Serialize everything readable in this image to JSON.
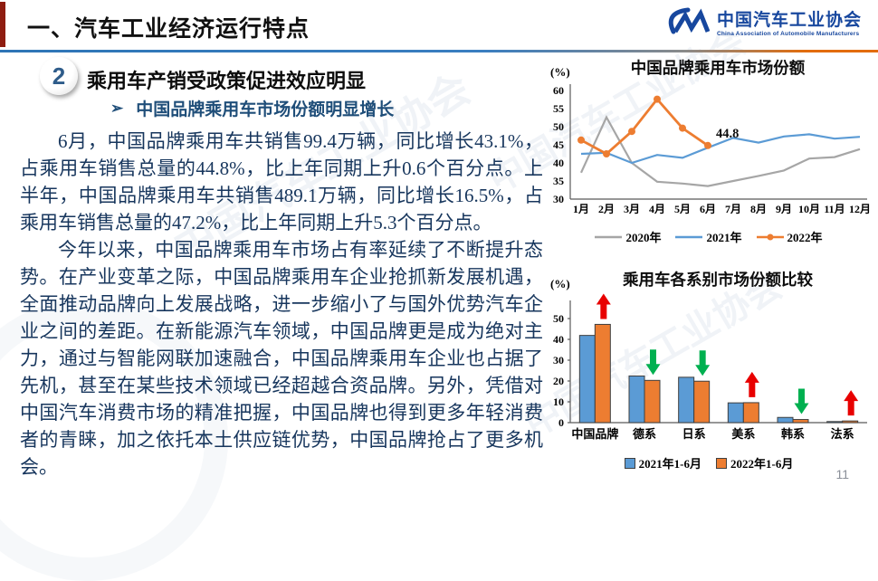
{
  "header": {
    "title": "一、汽车工业经济运行特点",
    "logo": {
      "name_cn": "中国汽车工业协会",
      "name_en": "China Association of Automobile Manufacturers"
    }
  },
  "section": {
    "number": "2",
    "title": "乘用车产销受政策促进效应明显",
    "bullet_marker": "➢",
    "bullet": "中国品牌乘用车市场份额明显增长"
  },
  "paragraphs": [
    "6月，中国品牌乘用车共销售99.4万辆，同比增长43.1%，占乘用车销售总量的44.8%，比上年同期上升0.6个百分点。上半年，中国品牌乘用车共销售489.1万辆，同比增长16.5%，占乘用车销售总量的47.2%，比上年同期上升5.3个百分点。",
    "今年以来，中国品牌乘用车市场占有率延续了不断提升态势。在产业变革之际，中国品牌乘用车企业抢抓新发展机遇，全面推动品牌向上发展战略，进一步缩小了与国外优势汽车企业之间的差距。在新能源汽车领域，中国品牌更是成为绝对主力，通过与智能网联加速融合，中国品牌乘用车企业也占据了先机，甚至在某些技术领域已经超越合资品牌。另外，凭借对中国汽车消费市场的精准把握，中国品牌也得到更多年轻消费者的青睐，加之依托本土供应链优势，中国品牌抢占了更多机会。"
  ],
  "watermark": "中国汽车工业协会",
  "page_number": "11",
  "colors": {
    "line_gray": "#a6a6a6",
    "line_blue": "#5b9bd5",
    "line_orange": "#ed7d31",
    "up_red": "#e80000",
    "down_green": "#00b050",
    "body_text": "#17365d",
    "logo_blue": "#17479e"
  },
  "chart_data": [
    {
      "type": "line",
      "title": "中国品牌乘用车市场份额",
      "unit_label": "(%)",
      "categories": [
        "1月",
        "2月",
        "3月",
        "4月",
        "5月",
        "6月",
        "7月",
        "8月",
        "9月",
        "10月",
        "11月",
        "12月"
      ],
      "series": [
        {
          "name": "2020年",
          "color": "#a6a6a6",
          "marker": false,
          "values": [
            37.3,
            52.6,
            40.0,
            34.8,
            34.3,
            33.6,
            35.0,
            36.4,
            37.9,
            41.2,
            41.6,
            43.8
          ]
        },
        {
          "name": "2021年",
          "color": "#5b9bd5",
          "marker": false,
          "values": [
            42.5,
            42.8,
            40.0,
            42.2,
            41.4,
            44.2,
            46.9,
            45.6,
            47.3,
            47.9,
            46.7,
            47.2
          ]
        },
        {
          "name": "2022年",
          "color": "#ed7d31",
          "marker": true,
          "values": [
            46.3,
            42.5,
            48.7,
            57.6,
            49.6,
            44.8
          ]
        }
      ],
      "annotation": {
        "text": "44.8",
        "series": "2022年",
        "index": 5
      },
      "ylim": [
        30,
        60
      ],
      "ytick_step": 5,
      "grid": false,
      "legend_position": "bottom"
    },
    {
      "type": "bar",
      "title": "乘用车各系别市场份额比较",
      "unit_label": "(%)",
      "categories": [
        "中国品牌",
        "德系",
        "日系",
        "美系",
        "韩系",
        "法系"
      ],
      "series": [
        {
          "name": "2021年1-6月",
          "color": "#5b9bd5",
          "values": [
            41.9,
            22.4,
            21.8,
            9.5,
            2.5,
            0.5
          ]
        },
        {
          "name": "2022年1-6月",
          "color": "#ed7d31",
          "values": [
            47.2,
            20.3,
            19.9,
            9.6,
            1.5,
            0.8
          ]
        }
      ],
      "trend_arrows": [
        {
          "direction": "up",
          "color": "#e80000"
        },
        {
          "direction": "down",
          "color": "#00b050"
        },
        {
          "direction": "down",
          "color": "#00b050"
        },
        {
          "direction": "up",
          "color": "#e80000"
        },
        {
          "direction": "down",
          "color": "#00b050"
        },
        {
          "direction": "up",
          "color": "#e80000"
        }
      ],
      "ylim": [
        0,
        50
      ],
      "ytick_step": 10,
      "grid": false,
      "legend_position": "bottom"
    }
  ]
}
